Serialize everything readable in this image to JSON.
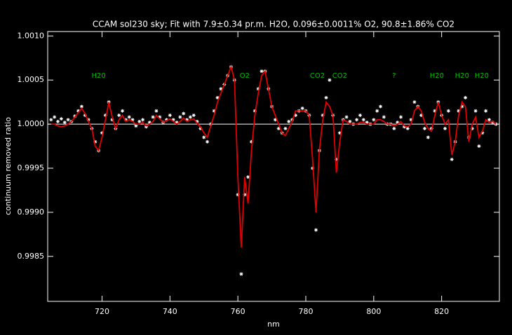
{
  "chart_data": {
    "type": "scatter-fit",
    "title": "CCAM sol230 sky; Fit with  7.9±0.34 pr.m. H2O, 0.096±0.0011% O2,  90.8±1.86% CO2",
    "x_label": "nm",
    "y_label": "continuum removed ratio",
    "xlim": [
      704,
      837
    ],
    "ylim": [
      0.99799,
      1.00105
    ],
    "xticks": [
      720,
      740,
      760,
      780,
      800,
      820
    ],
    "yticks": [
      {
        "value": 1.001,
        "label": "1.0010"
      },
      1.0005,
      {
        "value": 1,
        "label": "1.0000"
      },
      0.9995,
      {
        "value": 0.999,
        "label": "0.9990"
      },
      0.9985
    ],
    "reference_line": 1,
    "annotation_color": "#00c000",
    "annotations": [
      {
        "text": "H20",
        "x": 719
      },
      {
        "text": "O2",
        "x": 762
      },
      {
        "text": "CO2",
        "x": 783.4
      },
      {
        "text": "CO2",
        "x": 790
      },
      {
        "text": "?",
        "x": 806
      },
      {
        "text": "H20",
        "x": 818.6
      },
      {
        "text": "H20",
        "x": 826
      },
      {
        "text": "H20",
        "x": 831.8
      }
    ],
    "x": [
      705,
      706,
      707,
      708,
      709,
      710,
      711,
      712,
      713,
      714,
      715,
      716,
      717,
      718,
      719,
      720,
      721,
      722,
      723,
      724,
      725,
      726,
      727,
      728,
      729,
      730,
      731,
      732,
      733,
      734,
      735,
      736,
      737,
      738,
      739,
      740,
      741,
      742,
      743,
      744,
      745,
      746,
      747,
      748,
      749,
      750,
      751,
      752,
      753,
      754,
      755,
      756,
      757,
      758,
      759,
      760,
      761,
      762,
      763,
      764,
      765,
      766,
      767,
      768,
      769,
      770,
      771,
      772,
      773,
      774,
      775,
      776,
      777,
      778,
      779,
      780,
      781,
      782,
      783,
      784,
      785,
      786,
      787,
      788,
      789,
      790,
      791,
      792,
      793,
      794,
      795,
      796,
      797,
      798,
      799,
      800,
      801,
      802,
      803,
      804,
      805,
      806,
      807,
      808,
      809,
      810,
      811,
      812,
      813,
      814,
      815,
      816,
      817,
      818,
      819,
      820,
      821,
      822,
      823,
      824,
      825,
      826,
      827,
      828,
      829,
      830,
      831,
      832,
      833,
      834,
      835,
      836
    ],
    "series": [
      {
        "color": "#ffffff",
        "marker": "star",
        "values": [
          1.00005,
          1.00008,
          1.00003,
          1.00006,
          1.00002,
          1.00005,
          1.00003,
          1.00009,
          1.00015,
          1.0002,
          1.0001,
          1.00005,
          0.99995,
          0.9998,
          0.9997,
          0.9999,
          1.0001,
          1.00025,
          1.00005,
          0.99995,
          1.0001,
          1.00015,
          1.00005,
          1.00008,
          1.00005,
          0.99998,
          1.00003,
          1.00005,
          0.99997,
          1.00002,
          1.00008,
          1.00015,
          1.00008,
          1.00002,
          1.00005,
          1.0001,
          1.00005,
          1.00002,
          1.00008,
          1.00012,
          1.00005,
          1.00008,
          1.0001,
          1.00003,
          0.99995,
          0.99985,
          0.9998,
          1.0,
          1.00015,
          1.0003,
          1.0004,
          1.00045,
          1.00055,
          1.00065,
          1.0005,
          0.9992,
          0.9983,
          0.9992,
          0.9994,
          0.9998,
          1.00015,
          1.0004,
          1.0006,
          1.0006,
          1.0004,
          1.0002,
          1.00005,
          0.99995,
          0.9999,
          0.99995,
          1.00003,
          1.00005,
          1.0001,
          1.00015,
          1.00018,
          1.00015,
          1.0001,
          0.9995,
          0.9988,
          0.9997,
          1.0001,
          1.0003,
          1.0005,
          1.0001,
          0.9996,
          0.9999,
          1.00005,
          1.00008,
          1.00003,
          1.0,
          1.00005,
          1.0001,
          1.00005,
          1.00002,
          1.0,
          1.00005,
          1.00015,
          1.0002,
          1.00008,
          1.0,
          1.0,
          0.99995,
          1.00002,
          1.00008,
          0.99997,
          0.99995,
          1.00005,
          1.00025,
          1.0002,
          1.0001,
          0.99995,
          0.99985,
          0.99995,
          1.00015,
          1.00025,
          1.0001,
          0.99995,
          1.00015,
          0.9996,
          0.9998,
          1.00015,
          1.0002,
          1.0003,
          0.99985,
          0.99995,
          1.00015,
          0.99975,
          0.9999,
          1.00015,
          1.00005,
          1.00002,
          1.0
        ]
      },
      {
        "color": "#e00000",
        "marker": "line",
        "values": [
          1.0,
          1.0,
          0.99998,
          0.99997,
          0.99998,
          1.0,
          1.00003,
          1.00008,
          1.00013,
          1.00018,
          1.00012,
          1.00003,
          0.99995,
          0.99975,
          0.9997,
          0.99985,
          1.00005,
          1.00025,
          1.00008,
          0.99995,
          1.00005,
          1.0001,
          1.00003,
          1.00005,
          1.00003,
          1.0,
          1.0,
          1.00002,
          0.99998,
          1.0,
          1.00003,
          1.0001,
          1.00006,
          1.00002,
          1.00004,
          1.00006,
          1.00003,
          1.0,
          1.00003,
          1.00007,
          1.00003,
          1.00005,
          1.00006,
          1.00001,
          0.99997,
          0.9999,
          0.99985,
          0.99998,
          1.0001,
          1.00025,
          1.00035,
          1.00045,
          1.00055,
          1.00065,
          1.0005,
          0.9994,
          0.9986,
          0.9994,
          0.9991,
          0.9997,
          1.0001,
          1.00035,
          1.00055,
          1.0006,
          1.0004,
          1.0002,
          1.0001,
          1.0,
          0.9999,
          0.99987,
          0.99995,
          1.00003,
          1.00015,
          1.00015,
          1.00015,
          1.00015,
          1.0001,
          0.9996,
          0.999,
          0.9997,
          1.00005,
          1.00025,
          1.0002,
          1.0001,
          0.99945,
          0.9998,
          1.00005,
          1.00003,
          1.0,
          1.0,
          1.0,
          1.00002,
          1.00002,
          1.0,
          1.0,
          1.0,
          1.00005,
          1.00005,
          1.00003,
          1.0,
          1.0,
          0.99998,
          1.0,
          1.00003,
          0.99998,
          0.99997,
          1.0,
          1.00015,
          1.0002,
          1.00015,
          1.00002,
          0.99995,
          0.99992,
          1.0001,
          1.00025,
          1.0001,
          1.0,
          1.00005,
          0.99965,
          0.9998,
          1.0001,
          1.00025,
          1.0002,
          0.9998,
          1.0,
          1.00008,
          0.99985,
          0.99992,
          1.00005,
          1.00002,
          1.00003,
          1.0
        ]
      }
    ]
  }
}
